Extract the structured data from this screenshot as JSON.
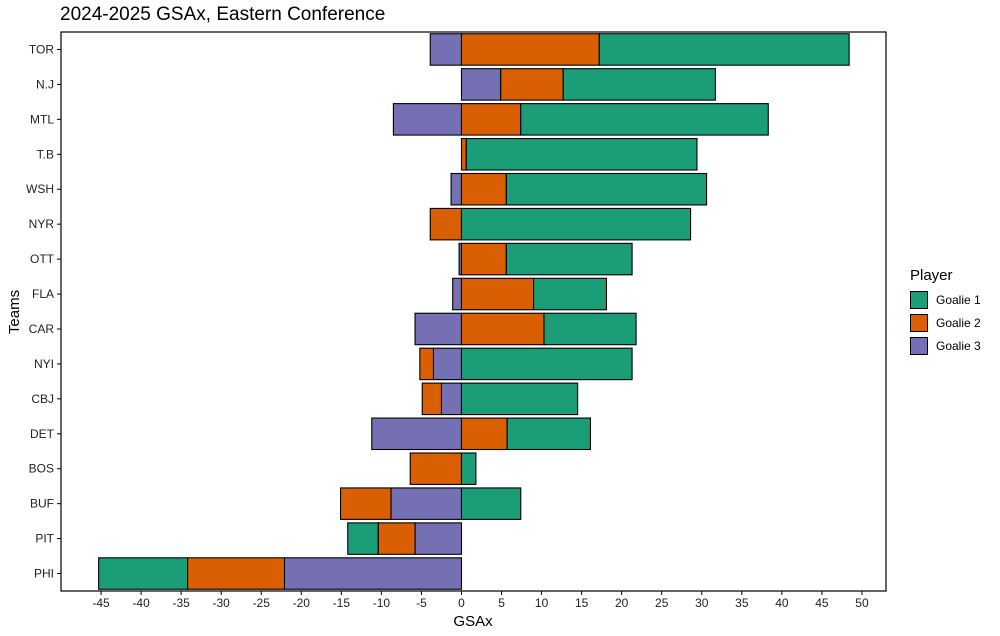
{
  "chart_data": {
    "type": "bar",
    "orientation": "horizontal",
    "stacked": true,
    "title": "2024-2025 GSAx, Eastern Conference",
    "xlabel": "GSAx",
    "ylabel": "Teams",
    "xlim": [
      -50,
      53
    ],
    "xticks": [
      -45,
      -40,
      -35,
      -30,
      -25,
      -20,
      -15,
      -10,
      -5,
      0,
      5,
      10,
      15,
      20,
      25,
      30,
      35,
      40,
      45,
      50
    ],
    "categories": [
      "TOR",
      "N.J",
      "MTL",
      "T.B",
      "WSH",
      "NYR",
      "OTT",
      "FLA",
      "CAR",
      "NYI",
      "CBJ",
      "DET",
      "BOS",
      "BUF",
      "PIT",
      "PHI"
    ],
    "legend": {
      "title": "Player",
      "position": "right"
    },
    "series": [
      {
        "name": "Goalie 1",
        "color": "#1b9e77",
        "values": [
          31.2,
          19.0,
          30.9,
          28.8,
          25.0,
          28.6,
          15.7,
          9.1,
          11.5,
          21.3,
          14.5,
          10.4,
          1.8,
          7.4,
          -3.8,
          -11.1
        ]
      },
      {
        "name": "Goalie 2",
        "color": "#d95f02",
        "values": [
          17.2,
          7.8,
          7.4,
          0.6,
          5.6,
          -3.9,
          5.6,
          9.0,
          10.3,
          -1.7,
          -2.4,
          5.7,
          -6.4,
          -6.3,
          -4.6,
          -12.1
        ]
      },
      {
        "name": "Goalie 3",
        "color": "#7570b3",
        "values": [
          -3.9,
          4.9,
          -8.5,
          0,
          -1.3,
          0,
          -0.3,
          -1.1,
          -5.8,
          -3.5,
          -2.5,
          -11.2,
          0,
          -8.8,
          -5.8,
          -22.1
        ]
      }
    ]
  }
}
